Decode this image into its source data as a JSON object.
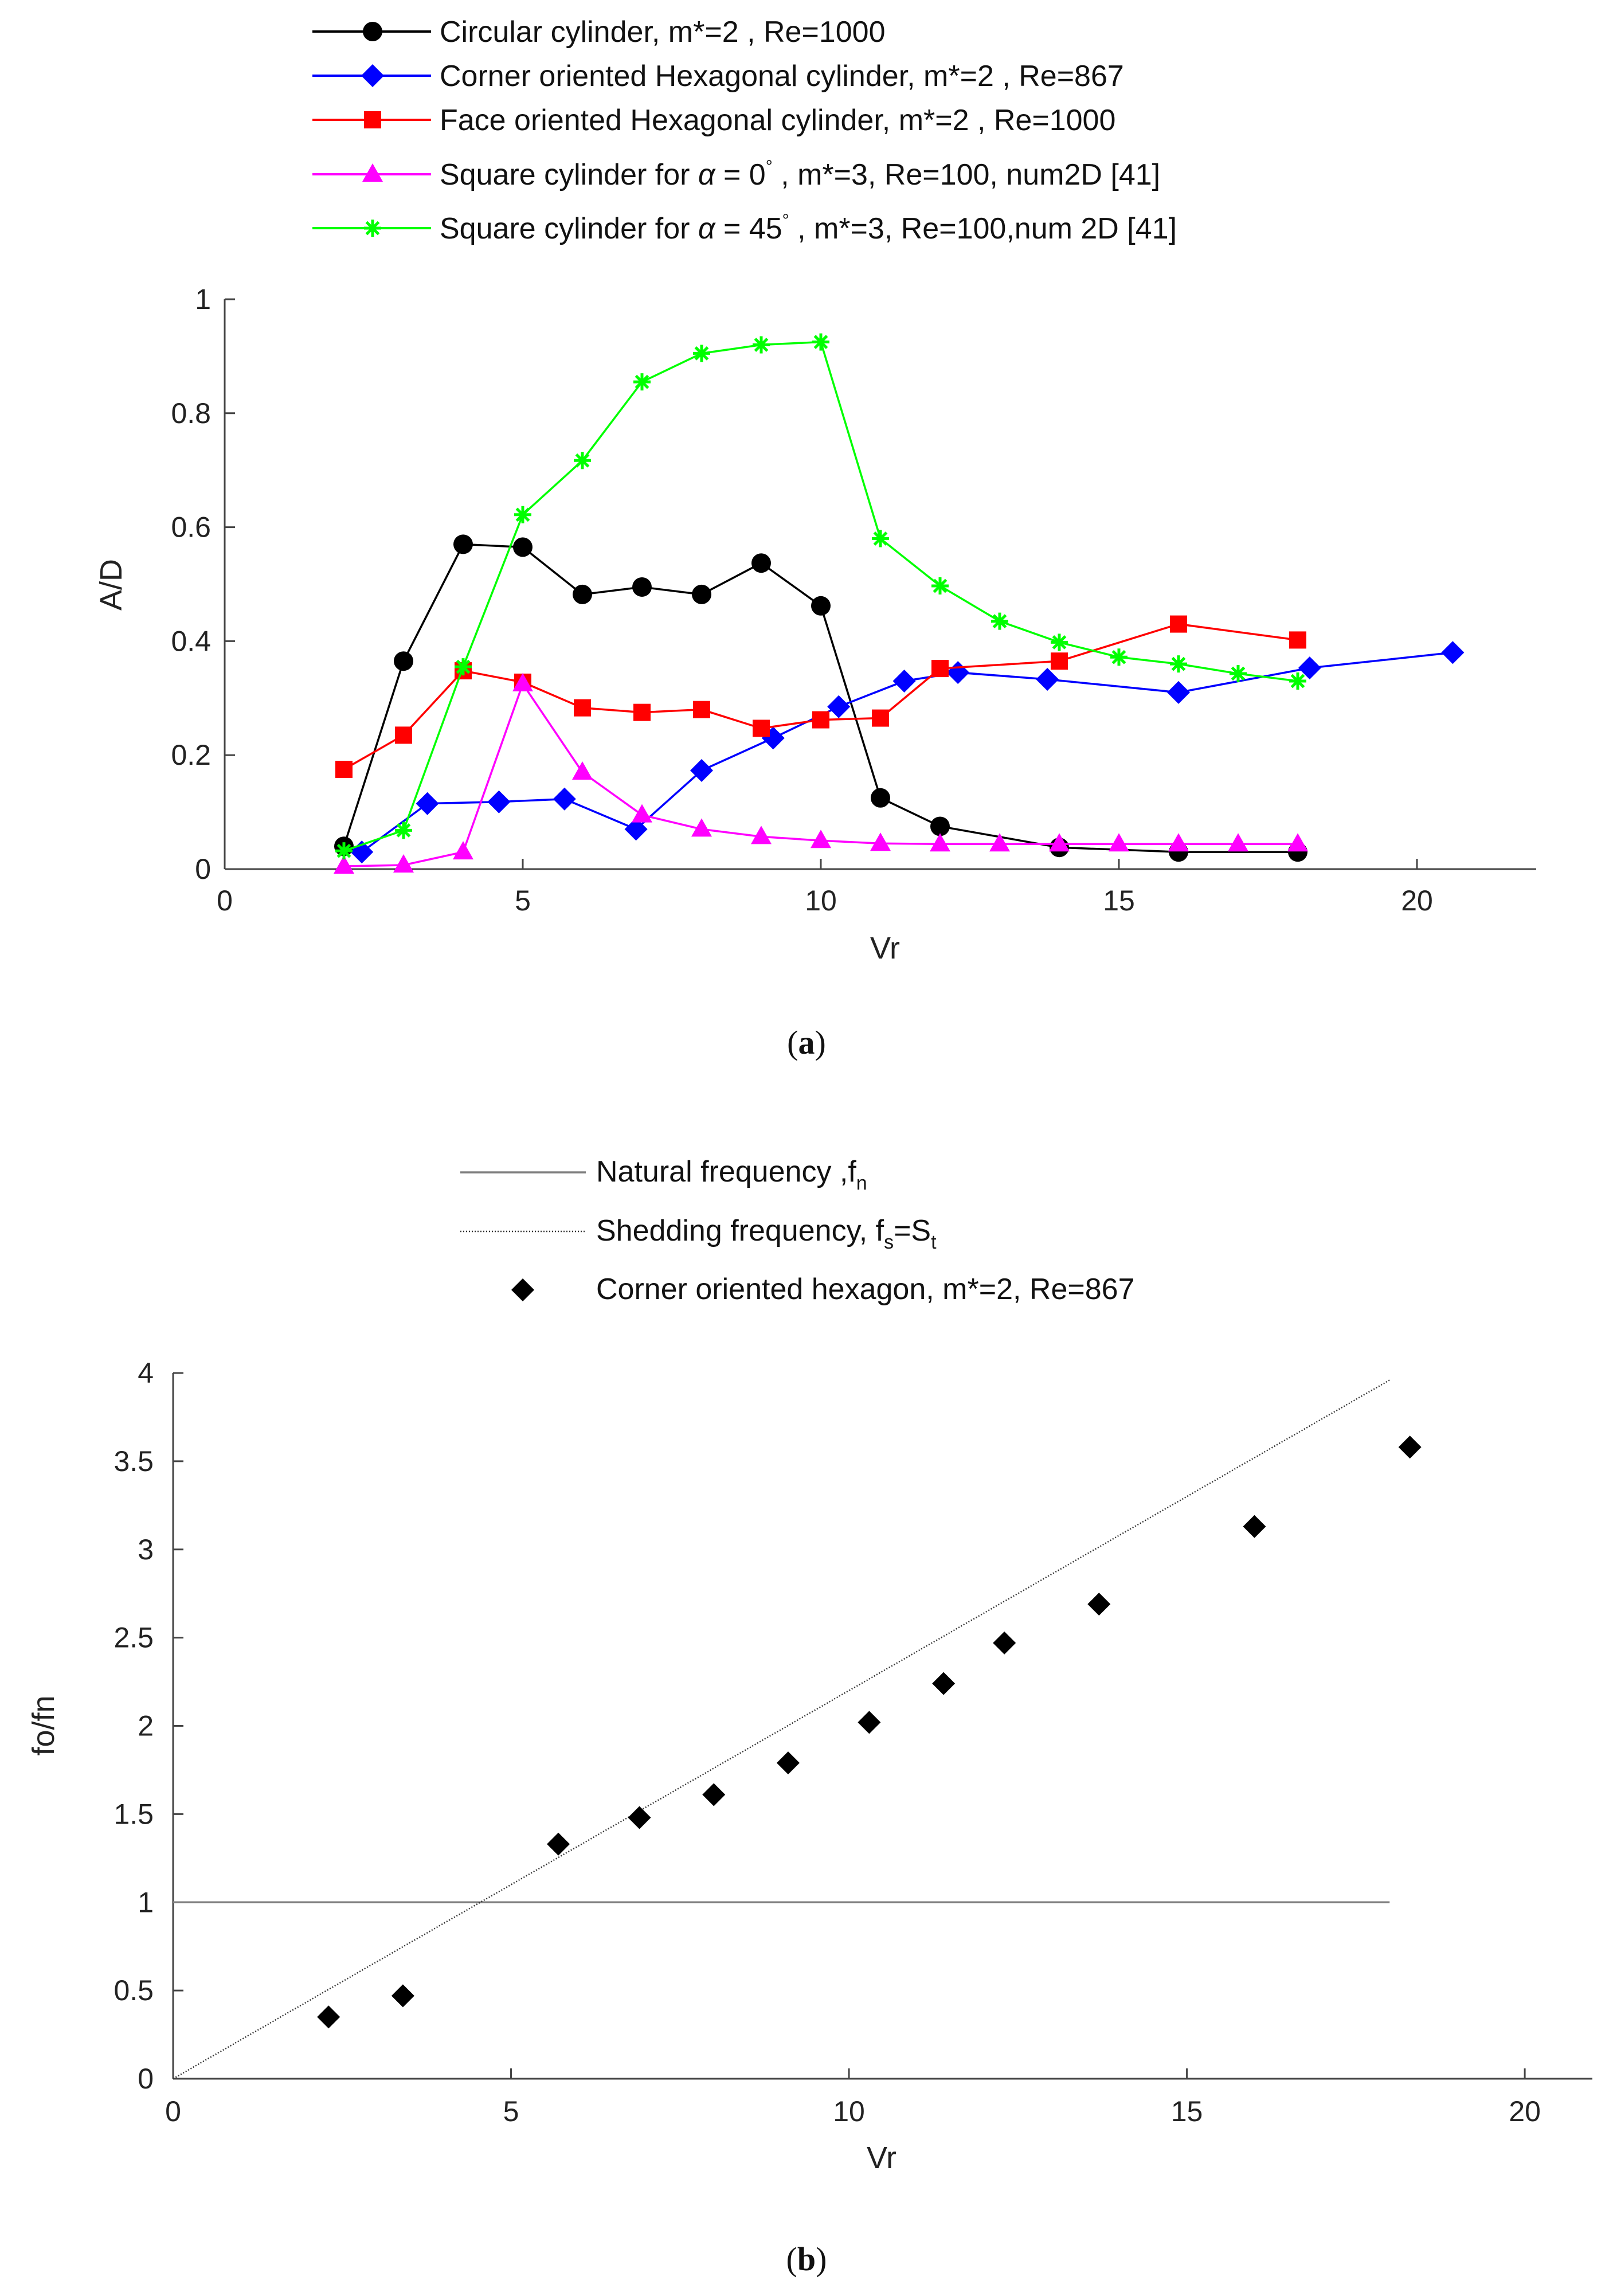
{
  "chart_data": [
    {
      "type": "line",
      "caption_letter": "a",
      "xlabel": "Vr",
      "ylabel": "A/D",
      "xlim": [
        0,
        22
      ],
      "ylim": [
        0,
        1
      ],
      "xticks": [
        "0",
        "5",
        "10",
        "15",
        "20"
      ],
      "yticks": [
        "0",
        "0.2",
        "0.4",
        "0.6",
        "0.8",
        "1"
      ],
      "series": [
        {
          "name": "Circular cylinder, m*=2 , Re=1000",
          "legend_parts": [
            "Circular cylinder, m*=2 , Re=1000"
          ],
          "color": "#000000",
          "marker": "circle",
          "x": [
            2,
            3,
            4,
            5,
            6,
            7,
            8,
            9,
            10,
            11,
            12,
            14,
            16,
            18
          ],
          "y": [
            0.04,
            0.365,
            0.57,
            0.565,
            0.482,
            0.495,
            0.482,
            0.537,
            0.462,
            0.125,
            0.075,
            0.038,
            0.03,
            0.03
          ]
        },
        {
          "name": "Corner oriented Hexagonal cylinder, m*=2 , Re=867",
          "legend_parts": [
            "Corner oriented Hexagonal cylinder, m*=2 , Re=867"
          ],
          "color": "#0000ff",
          "marker": "diamond",
          "x": [
            2.3,
            3.4,
            4.6,
            5.7,
            6.9,
            8,
            9.2,
            10.3,
            11.4,
            12.3,
            13.8,
            16,
            18.2,
            20.6
          ],
          "y": [
            0.03,
            0.115,
            0.118,
            0.123,
            0.07,
            0.173,
            0.23,
            0.285,
            0.33,
            0.345,
            0.333,
            0.31,
            0.353,
            0.38
          ]
        },
        {
          "name": "Face oriented Hexagonal cylinder, m*=2 , Re=1000",
          "legend_parts": [
            "Face oriented Hexagonal cylinder, m*=2 , Re=1000"
          ],
          "color": "#ff0000",
          "marker": "square",
          "x": [
            2,
            3,
            4,
            5,
            6,
            7,
            8,
            9,
            10,
            11,
            12,
            14,
            16,
            18
          ],
          "y": [
            0.175,
            0.235,
            0.348,
            0.328,
            0.283,
            0.275,
            0.28,
            0.247,
            0.262,
            0.265,
            0.352,
            0.365,
            0.43,
            0.402
          ]
        },
        {
          "name": "Square cylinder for α = 0°, m*=3, Re=100, num2D [41]",
          "legend_parts": [
            "Square cylinder for ",
            "α",
            " = 0",
            "°",
            " , m*=3, Re=100, num2D [41]"
          ],
          "color": "#ff00ff",
          "marker": "triangle",
          "x": [
            2,
            3,
            4,
            5,
            6,
            7,
            8,
            9,
            10,
            11,
            12,
            13,
            14,
            15,
            16,
            17,
            18
          ],
          "y": [
            0.005,
            0.007,
            0.03,
            0.325,
            0.17,
            0.095,
            0.07,
            0.057,
            0.05,
            0.045,
            0.044,
            0.044,
            0.044,
            0.044,
            0.044,
            0.044,
            0.044
          ]
        },
        {
          "name": "Square cylinder for α = 45°, m*=3, Re=100,num 2D [41]",
          "legend_parts": [
            "Square cylinder for ",
            "α",
            " = 45",
            "°",
            " , m*=3, Re=100,num 2D [41]"
          ],
          "color": "#00ff00",
          "marker": "star",
          "x": [
            2,
            3,
            4,
            5,
            6,
            7,
            8,
            9,
            10,
            11,
            12,
            13,
            14,
            15,
            16,
            17,
            18
          ],
          "y": [
            0.032,
            0.068,
            0.355,
            0.622,
            0.717,
            0.855,
            0.905,
            0.92,
            0.925,
            0.58,
            0.497,
            0.435,
            0.398,
            0.372,
            0.36,
            0.343,
            0.33
          ]
        }
      ]
    },
    {
      "type": "line",
      "caption_letter": "b",
      "xlabel": "Vr",
      "ylabel": "fo/fn",
      "xlim": [
        0,
        21
      ],
      "ylim": [
        0,
        4
      ],
      "xticks": [
        "0",
        "5",
        "10",
        "15",
        "20"
      ],
      "yticks": [
        "0",
        "0.5",
        "1",
        "1.5",
        "2",
        "2.5",
        "3",
        "3.5",
        "4"
      ],
      "series": [
        {
          "name": "Natural frequency ,fn",
          "legend_parts": [
            "Natural frequency ,f",
            "n"
          ],
          "color": "#7f7f7f",
          "style": "solid",
          "x": [
            0,
            18
          ],
          "y": [
            1,
            1
          ]
        },
        {
          "name": "Shedding frequency, fs=St",
          "legend_parts": [
            "Shedding frequency, f",
            "s",
            "=S",
            "t"
          ],
          "color": "#333333",
          "style": "dotted",
          "x": [
            0,
            18
          ],
          "y": [
            0,
            3.96
          ]
        },
        {
          "name": "Corner oriented hexagon, m*=2, Re=867",
          "legend_parts": [
            "Corner oriented hexagon, m*=2, Re=867"
          ],
          "color": "#000000",
          "style": "markers",
          "marker": "diamond",
          "x": [
            2.3,
            3.4,
            5.7,
            6.9,
            8,
            9.1,
            10.3,
            11.4,
            12.3,
            13.7,
            16,
            18.3
          ],
          "y": [
            0.35,
            0.47,
            1.33,
            1.48,
            1.61,
            1.79,
            2.02,
            2.24,
            2.47,
            2.69,
            3.13,
            3.58
          ]
        }
      ]
    }
  ]
}
